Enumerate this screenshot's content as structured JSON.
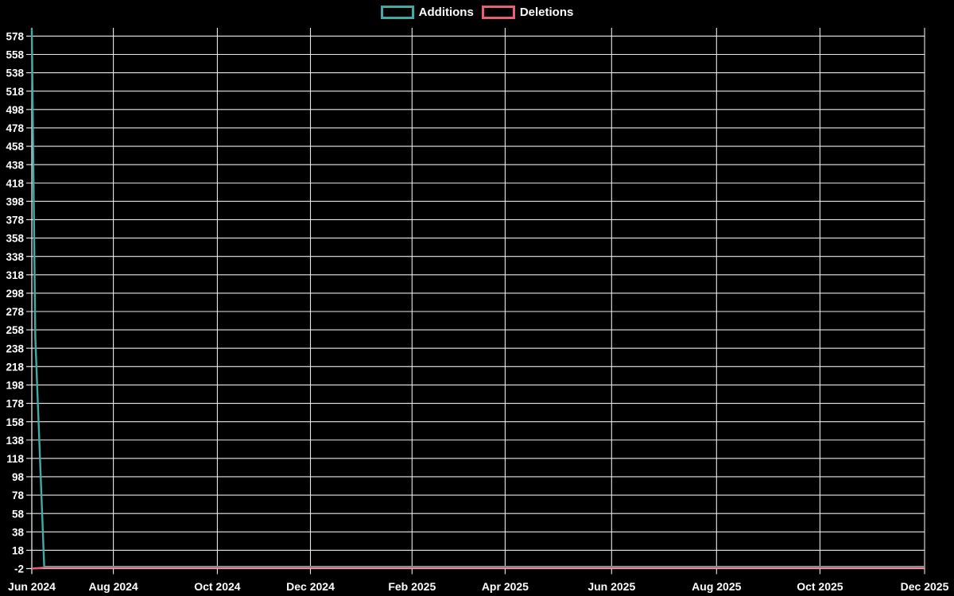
{
  "legend": {
    "items": [
      {
        "label": "Additions",
        "color": "#3fada6"
      },
      {
        "label": "Deletions",
        "color": "#e95f77"
      }
    ]
  },
  "chart_data": {
    "type": "line",
    "title": "",
    "background_color": "#000000",
    "gridline_color": "#e9e9e9",
    "label_color": "#ffffff",
    "grid": true,
    "legend_position": "top-center",
    "x_axis": {
      "tick_labels": [
        "Jun 2024",
        "Aug 2024",
        "Oct 2024",
        "Dec 2024",
        "Feb 2025",
        "Apr 2025",
        "Jun 2025",
        "Aug 2025",
        "Oct 2025",
        "Dec 2025"
      ],
      "unit": "month"
    },
    "y_axis": {
      "tick_labels": [
        "578",
        "558",
        "538",
        "518",
        "498",
        "478",
        "458",
        "438",
        "418",
        "398",
        "378",
        "358",
        "338",
        "318",
        "298",
        "278",
        "258",
        "238",
        "218",
        "198",
        "178",
        "158",
        "138",
        "118",
        "98",
        "78",
        "58",
        "38",
        "18",
        "-2"
      ],
      "min": -2,
      "max": 587,
      "tick_step": 20
    },
    "series": [
      {
        "name": "Additions",
        "color": "#3fada6",
        "points_months_vs_value": [
          [
            0,
            586
          ],
          [
            0.07,
            250
          ],
          [
            0.25,
            0
          ],
          [
            18,
            0
          ]
        ],
        "summary": "Spike of ~586 additions at Jun 2024, then flat at 0 through Dec 2025"
      },
      {
        "name": "Deletions",
        "color": "#e95f77",
        "points_months_vs_value": [
          [
            0,
            -2
          ],
          [
            0.25,
            -1
          ],
          [
            18,
            -1
          ]
        ],
        "summary": "-2 deletions at Jun 2024, then flat near 0 through Dec 2025"
      }
    ]
  }
}
